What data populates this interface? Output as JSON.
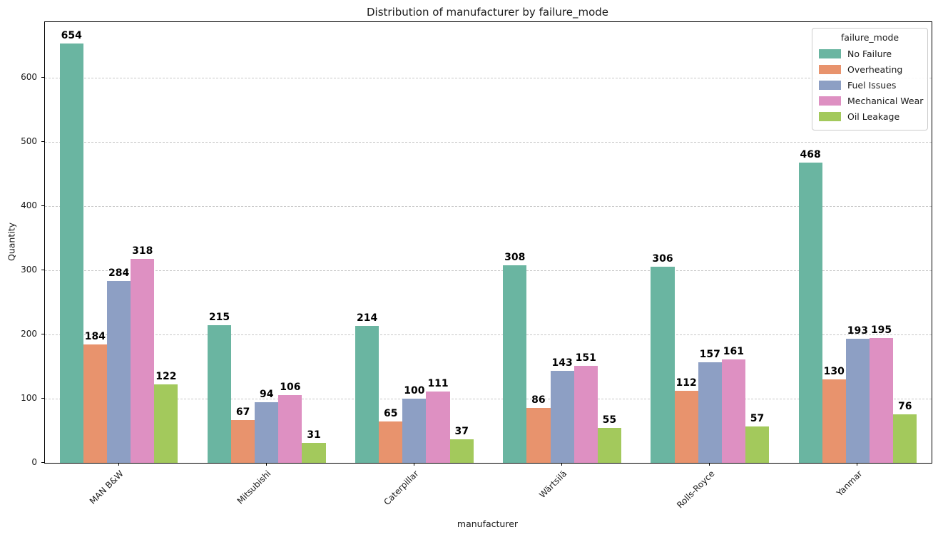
{
  "chart_data": {
    "type": "bar",
    "title": "Distribution of manufacturer by failure_mode",
    "xlabel": "manufacturer",
    "ylabel": "Quantity",
    "categories": [
      "MAN B&W",
      "Mitsubishi",
      "Caterpillar",
      "Wärtsilä",
      "Rolls-Royce",
      "Yanmar"
    ],
    "series": [
      {
        "name": "No Failure",
        "color": "#6ab5a1",
        "values": [
          654,
          215,
          214,
          308,
          306,
          468
        ]
      },
      {
        "name": "Overheating",
        "color": "#e8936d",
        "values": [
          184,
          67,
          65,
          86,
          112,
          130
        ]
      },
      {
        "name": "Fuel Issues",
        "color": "#8d9fc4",
        "values": [
          284,
          94,
          100,
          143,
          157,
          193
        ]
      },
      {
        "name": "Mechanical Wear",
        "color": "#de90c2",
        "values": [
          318,
          106,
          111,
          151,
          161,
          195
        ]
      },
      {
        "name": "Oil Leakage",
        "color": "#a3c95c",
        "values": [
          122,
          31,
          37,
          55,
          57,
          76
        ]
      }
    ],
    "legend_title": "failure_mode",
    "legend_position": "upper right",
    "y_ticks": [
      0,
      100,
      200,
      300,
      400,
      500,
      600
    ],
    "ylim": [
      0,
      687
    ],
    "grid": "horizontal-dashed",
    "bar_labels": true,
    "grid_color": "#c8c8c8",
    "spine_color": "#000000",
    "text_color": "#1a1a1a"
  }
}
